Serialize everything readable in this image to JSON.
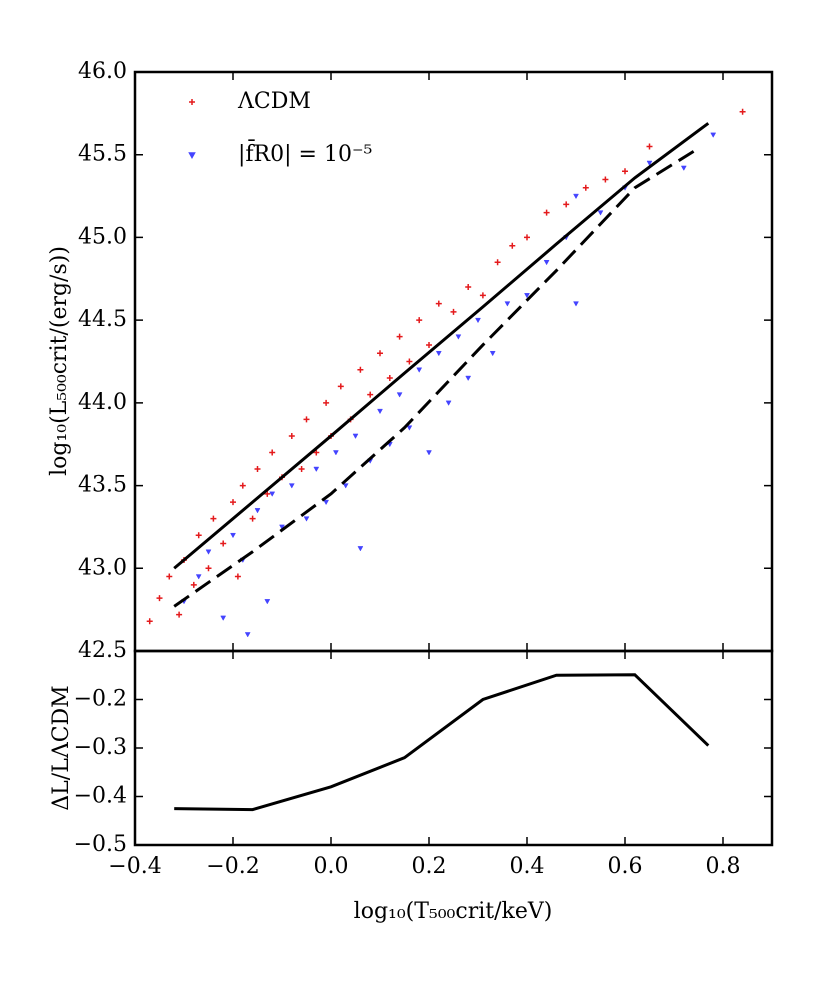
{
  "chart_data": [
    {
      "type": "scatter",
      "ylabel": "log₁₀(L₅₀₀crit/(erg/s))",
      "xlim": [
        -0.4,
        0.9
      ],
      "xticks": [
        -0.4,
        -0.2,
        0,
        0.2,
        0.4,
        0.6,
        0.8
      ],
      "ylim": [
        42.5,
        46
      ],
      "yticks": [
        42.5,
        {
          "value": 43,
          "label": "43.0"
        },
        43.5,
        {
          "value": 44,
          "label": "44.0"
        },
        44.5,
        {
          "value": 45,
          "label": "45.0"
        },
        45.5,
        {
          "value": 46,
          "label": "46.0"
        }
      ],
      "legend": "upper left",
      "series": [
        {
          "name": "ΛCDM",
          "color": "#e41a1c",
          "marker": "+",
          "x": [
            -0.37,
            -0.35,
            -0.33,
            -0.31,
            -0.3,
            -0.28,
            -0.27,
            -0.25,
            -0.24,
            -0.22,
            -0.2,
            -0.19,
            -0.18,
            -0.16,
            -0.15,
            -0.13,
            -0.12,
            -0.1,
            -0.08,
            -0.06,
            -0.05,
            -0.03,
            -0.01,
            0,
            0.02,
            0.04,
            0.06,
            0.08,
            0.1,
            0.12,
            0.14,
            0.16,
            0.18,
            0.2,
            0.22,
            0.25,
            0.28,
            0.31,
            0.34,
            0.37,
            0.4,
            0.44,
            0.48,
            0.52,
            0.56,
            0.6,
            0.65,
            0.84
          ],
          "values": [
            42.68,
            42.82,
            42.95,
            42.72,
            43.05,
            42.9,
            43.2,
            43.0,
            43.3,
            43.15,
            43.4,
            42.95,
            43.5,
            43.3,
            43.6,
            43.45,
            43.7,
            43.55,
            43.8,
            43.6,
            43.9,
            43.7,
            44.0,
            43.8,
            44.1,
            43.9,
            44.2,
            44.05,
            44.3,
            44.15,
            44.4,
            44.25,
            44.5,
            44.35,
            44.6,
            44.55,
            44.7,
            44.65,
            44.85,
            44.95,
            45.0,
            45.15,
            45.2,
            45.3,
            45.35,
            45.4,
            45.55,
            45.76
          ]
        },
        {
          "name": "|f̄R0| = 10⁻⁵",
          "color": "#4444ff",
          "marker": "v",
          "x": [
            -0.3,
            -0.27,
            -0.25,
            -0.22,
            -0.2,
            -0.18,
            -0.15,
            -0.13,
            -0.12,
            -0.1,
            -0.08,
            -0.05,
            -0.03,
            -0.01,
            0.01,
            0.03,
            0.05,
            0.06,
            0.08,
            0.1,
            0.12,
            0.14,
            0.16,
            0.18,
            0.2,
            0.22,
            0.24,
            0.26,
            0.28,
            0.3,
            0.33,
            0.36,
            0.4,
            0.44,
            0.48,
            0.5,
            0.55,
            0.6,
            0.65,
            0.72,
            0.78,
            -0.17,
            0.5
          ],
          "values": [
            42.8,
            42.95,
            43.1,
            42.7,
            43.2,
            43.05,
            43.35,
            42.8,
            43.45,
            43.25,
            43.5,
            43.3,
            43.6,
            43.4,
            43.7,
            43.5,
            43.8,
            43.12,
            43.65,
            43.95,
            43.75,
            44.05,
            43.85,
            44.2,
            43.7,
            44.3,
            44.0,
            44.4,
            44.15,
            44.5,
            44.3,
            44.6,
            44.65,
            44.85,
            45.0,
            45.25,
            45.15,
            45.3,
            45.45,
            45.42,
            45.62,
            42.6,
            44.6
          ]
        }
      ],
      "lines": [
        {
          "color": "#000000",
          "dash": "solid",
          "x": [
            -0.32,
            -0.16,
            0,
            0.15,
            0.31,
            0.46,
            0.62,
            0.77
          ],
          "values": [
            43.0,
            43.4,
            43.8,
            44.18,
            44.58,
            44.96,
            45.36,
            45.69
          ]
        },
        {
          "color": "#000000",
          "dash": "dashed",
          "x": [
            -0.32,
            -0.16,
            0,
            0.15,
            0.31,
            0.46,
            0.62,
            0.74
          ],
          "values": [
            42.77,
            43.1,
            43.45,
            43.85,
            44.35,
            44.8,
            45.3,
            45.52
          ]
        }
      ]
    },
    {
      "type": "line",
      "xlabel": "log₁₀(T₅₀₀crit/keV)",
      "ylabel": "ΔL/LΛCDM",
      "xlim": [
        -0.4,
        0.9
      ],
      "xticks": [
        {
          "value": -0.4,
          "label": "−0.4"
        },
        {
          "value": -0.2,
          "label": "−0.2"
        },
        {
          "value": 0,
          "label": "0.0"
        },
        0.2,
        0.4,
        0.6,
        0.8
      ],
      "ylim": [
        -0.5,
        -0.1
      ],
      "yticks": [
        {
          "value": -0.5,
          "label": "−0.5"
        },
        {
          "value": -0.4,
          "label": "−0.4"
        },
        {
          "value": -0.3,
          "label": "−0.3"
        },
        {
          "value": -0.2,
          "label": "−0.2"
        }
      ],
      "color": "#000000",
      "x": [
        -0.32,
        -0.16,
        0,
        0.15,
        0.31,
        0.46,
        0.62,
        0.77
      ],
      "values": [
        -0.425,
        -0.427,
        -0.38,
        -0.32,
        -0.2,
        -0.15,
        -0.149,
        -0.295
      ]
    }
  ]
}
